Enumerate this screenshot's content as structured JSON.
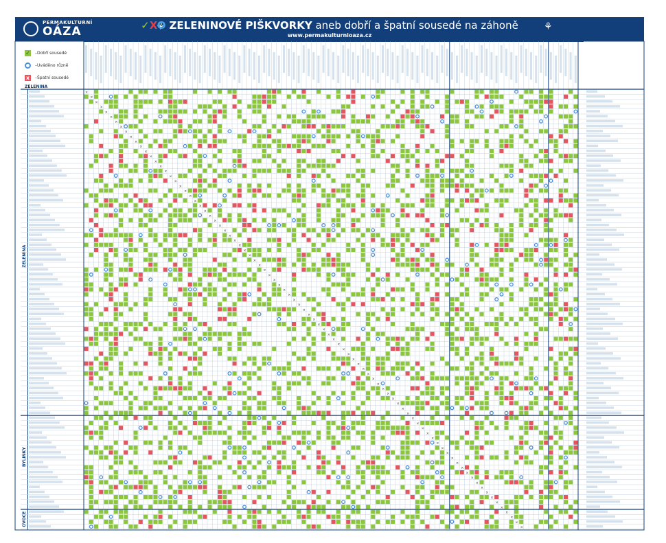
{
  "banner": {
    "logo_sub": "PERMAKULTURNÍ",
    "logo_main": "OÁZA",
    "title_marks": {
      "check": "✓",
      "x": "X",
      "o": "O"
    },
    "title_bold": "ZELENINOVÉ PIŠKVORKY",
    "title_rest": " aneb dobří a špatní sousedé na záhoně",
    "url": "www.permakulturnioaza.cz"
  },
  "legend": {
    "good": "Dobří sousedé",
    "mixed": "Uváděno různě",
    "bad": "Špatní sousedé"
  },
  "sections": {
    "top_label": "ZELENINA",
    "vegetables": "ZELENINA",
    "herbs": "BYLINKY",
    "fruit": "OVOCE"
  },
  "colors": {
    "banner": "#123f7a",
    "good": "#8cc63f",
    "mixed": "#4a90d9",
    "bad": "#e25660",
    "grid": "#c7d3e0",
    "label_stripe": "#d5e2ee"
  },
  "icons": [
    "logo-icon",
    "sprout-icon",
    "check-icon",
    "circle-icon",
    "cross-icon"
  ]
}
